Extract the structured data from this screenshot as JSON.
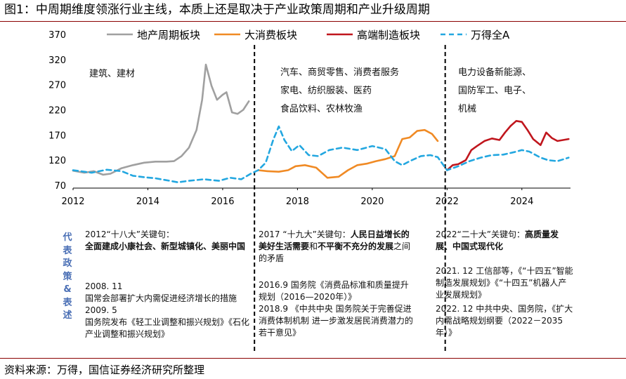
{
  "title": "图1：中周期维度领涨行业主线，本质上还是取决于产业政策周期和产业升级周期",
  "source": "资料来源：万得，国信证券经济研究所整理",
  "colors": {
    "rule": "#8a0000",
    "gray": "#a0a0a0",
    "orange": "#f08a24",
    "red": "#c0161d",
    "blue": "#23a7e0",
    "side": "#4a6fb5"
  },
  "chart_data": {
    "type": "line",
    "title": "",
    "xlabel": "",
    "ylabel": "",
    "ylim": [
      70,
      370
    ],
    "xlim": [
      2012,
      2025.3
    ],
    "yticks": [
      70,
      120,
      170,
      220,
      270,
      320,
      370
    ],
    "xticks": [
      2012,
      2014,
      2016,
      2018,
      2020,
      2022,
      2024
    ],
    "legend": [
      "地产周期板块",
      "大消费板块",
      "高端制造板块",
      "万得全A"
    ],
    "dividers": [
      2016.85,
      2021.95
    ],
    "series": [
      {
        "name": "地产周期板块",
        "color": "#a0a0a0",
        "style": "solid",
        "x": [
          2012.0,
          2012.3,
          2012.55,
          2012.8,
          2013.0,
          2013.3,
          2013.6,
          2013.9,
          2014.2,
          2014.5,
          2014.7,
          2014.9,
          2015.1,
          2015.3,
          2015.45,
          2015.55,
          2015.7,
          2015.85,
          2016.0,
          2016.1,
          2016.25,
          2016.4,
          2016.55,
          2016.7
        ],
        "values": [
          99,
          95,
          98,
          91,
          93,
          104,
          110,
          115,
          117,
          117,
          118,
          128,
          145,
          180,
          240,
          310,
          268,
          240,
          250,
          255,
          215,
          212,
          220,
          237
        ]
      },
      {
        "name": "大消费板块",
        "color": "#f08a24",
        "style": "solid",
        "x": [
          2016.95,
          2017.2,
          2017.5,
          2017.75,
          2017.95,
          2018.2,
          2018.5,
          2018.8,
          2019.1,
          2019.35,
          2019.6,
          2019.85,
          2020.1,
          2020.35,
          2020.6,
          2020.8,
          2021.0,
          2021.2,
          2021.4,
          2021.6,
          2021.75
        ],
        "values": [
          100,
          98,
          97,
          100,
          108,
          110,
          105,
          85,
          87,
          100,
          110,
          113,
          118,
          122,
          128,
          162,
          165,
          178,
          180,
          172,
          158
        ]
      },
      {
        "name": "高端制造板块",
        "color": "#c0161d",
        "style": "solid",
        "x": [
          2022.0,
          2022.15,
          2022.3,
          2022.5,
          2022.65,
          2022.8,
          2023.0,
          2023.2,
          2023.4,
          2023.55,
          2023.7,
          2023.85,
          2024.0,
          2024.15,
          2024.3,
          2024.5,
          2024.65,
          2024.8,
          2024.95,
          2025.1,
          2025.25
        ],
        "values": [
          100,
          110,
          112,
          120,
          140,
          148,
          158,
          163,
          160,
          175,
          188,
          198,
          196,
          180,
          162,
          150,
          175,
          164,
          158,
          160,
          162
        ]
      },
      {
        "name": "万得全A",
        "color": "#23a7e0",
        "style": "dashed",
        "x": [
          2012.0,
          2012.5,
          2012.9,
          2013.3,
          2013.6,
          2013.9,
          2014.2,
          2014.5,
          2014.8,
          2015.1,
          2015.5,
          2015.9,
          2016.2,
          2016.5,
          2016.75,
          2016.95,
          2017.15,
          2017.35,
          2017.5,
          2017.65,
          2017.85,
          2018.05,
          2018.3,
          2018.55,
          2018.85,
          2019.2,
          2019.6,
          2020.0,
          2020.35,
          2020.6,
          2020.8,
          2021.0,
          2021.3,
          2021.55,
          2021.75,
          2022.0,
          2022.3,
          2022.6,
          2022.9,
          2023.2,
          2023.5,
          2023.8,
          2024.0,
          2024.2,
          2024.5,
          2024.7,
          2024.95,
          2025.25
        ],
        "values": [
          100,
          95,
          101,
          98,
          89,
          86,
          84,
          80,
          76,
          79,
          82,
          79,
          85,
          82,
          93,
          100,
          115,
          160,
          187,
          160,
          138,
          150,
          130,
          128,
          140,
          145,
          140,
          148,
          142,
          118,
          110,
          118,
          128,
          130,
          126,
          100,
          108,
          118,
          125,
          130,
          131,
          136,
          140,
          137,
          125,
          120,
          118,
          125
        ]
      }
    ]
  },
  "annotations": {
    "period1": "建筑、建材",
    "period2_lines": [
      "汽车、商贸零售、消费者服务",
      "家电、纺织服装、医药",
      "食品饮料、农林牧渔"
    ],
    "period3_lines": [
      "电力设备新能源、",
      "国防军工、电子、",
      "机械"
    ]
  },
  "side_label": [
    "代",
    "表",
    "政",
    "策",
    "&",
    "表",
    "述"
  ],
  "policy": {
    "col1": {
      "kw_head": "2012“十八大”关键句：",
      "kw_bold": "全面建成小康社会、新型城镇化、美丽中国",
      "e1_date": "2008. 11",
      "e1_text": "国常会部署扩大内需促进经济增长的措施",
      "e2_date": "2009. 5",
      "e2_text": "国务院发布《轻工业调整和振兴规划》《石化产业调整和振兴规划》"
    },
    "col2": {
      "kw_head": "2017 “十九大”关键句：",
      "kw_bold1": "人民日益增长的美好生活需要",
      "kw_mid": "和",
      "kw_bold2": "不平衡不充分的发展",
      "kw_tail": "之间的矛盾",
      "e1_text": "2016.9 国务院《消费品标准和质量提升规划（2016—2020年）》",
      "e2_text": "2018.9 《中共中央 国务院关于完善促进消费体制机制 进一步激发居民消费潜力的若干意见》"
    },
    "col3": {
      "kw_head": "2022“二十大”关键句：",
      "kw_bold": "高质量发展、中国式现代化",
      "e1_text": "2021. 12 工信部等，《“十四五”智能制造发展规划》《“十四五”机器人产业发展规划》",
      "e2_text": "2022. 12 中共中央、国务院，《扩大内需战略规划纲要（2022－2035年）》"
    }
  }
}
